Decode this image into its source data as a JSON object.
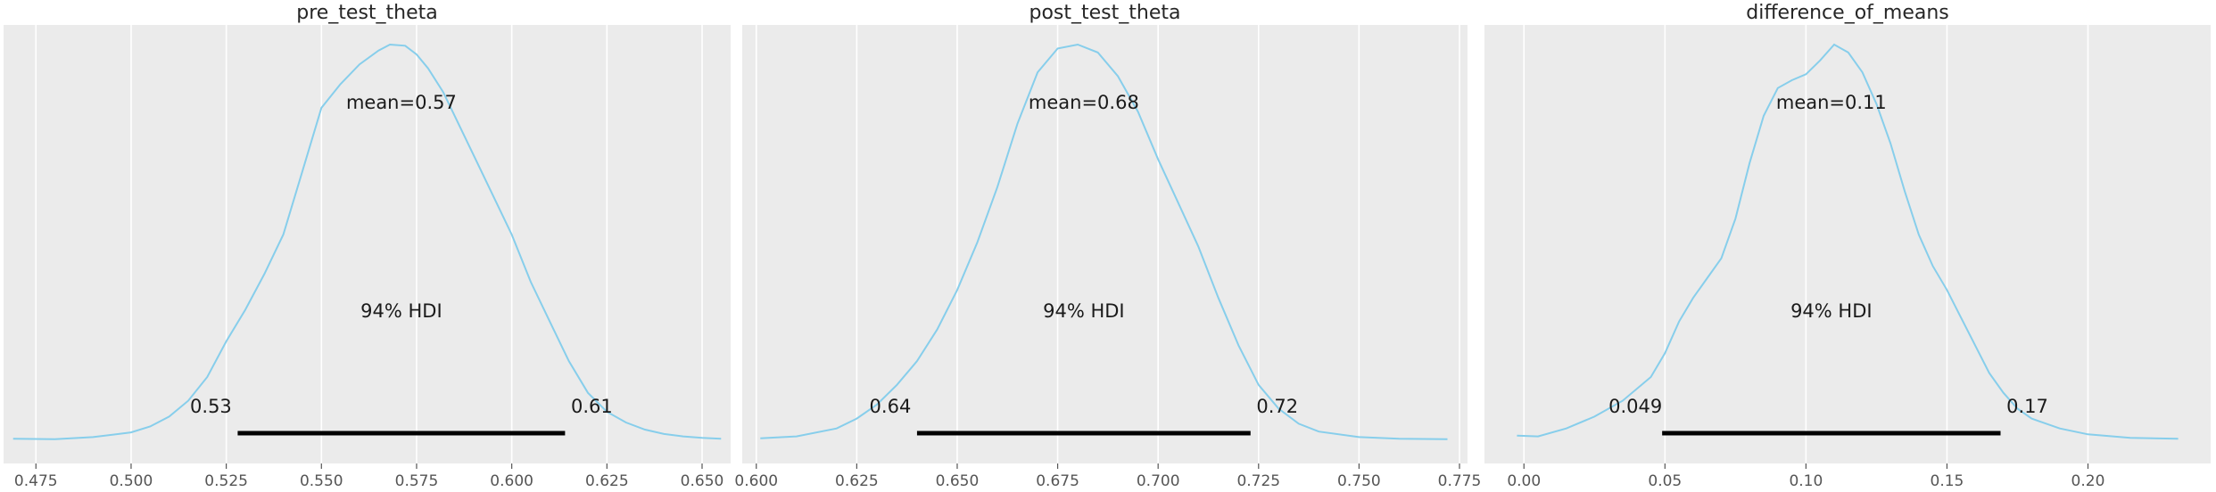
{
  "colors": {
    "kde": "#87ceeb",
    "hdi": "#000000",
    "panel_background": "#ebebeb"
  },
  "chart_data": [
    {
      "type": "area",
      "title": "pre_test_theta",
      "mean_label": "mean=0.57",
      "hdi_label": "94% HDI",
      "hdi": {
        "lower": 0.528,
        "upper": 0.614,
        "lower_label": "0.53",
        "upper_label": "0.61"
      },
      "xlim": [
        0.4665,
        0.6575
      ],
      "ylim": [
        0,
        1
      ],
      "xticks": [
        0.475,
        0.5,
        0.525,
        0.55,
        0.575,
        0.6,
        0.625,
        0.65
      ],
      "xtick_labels": [
        "0.475",
        "0.500",
        "0.525",
        "0.550",
        "0.575",
        "0.600",
        "0.625",
        "0.650"
      ],
      "density": {
        "x": [
          0.469,
          0.48,
          0.49,
          0.5,
          0.505,
          0.51,
          0.515,
          0.52,
          0.525,
          0.53,
          0.535,
          0.54,
          0.545,
          0.55,
          0.555,
          0.56,
          0.565,
          0.568,
          0.572,
          0.575,
          0.578,
          0.582,
          0.586,
          0.59,
          0.595,
          0.6,
          0.605,
          0.61,
          0.615,
          0.62,
          0.625,
          0.63,
          0.635,
          0.64,
          0.645,
          0.65,
          0.655
        ],
        "y": [
          0.004,
          0.003,
          0.008,
          0.02,
          0.035,
          0.06,
          0.1,
          0.16,
          0.25,
          0.33,
          0.42,
          0.52,
          0.68,
          0.84,
          0.9,
          0.95,
          0.985,
          1.0,
          0.997,
          0.975,
          0.94,
          0.88,
          0.8,
          0.72,
          0.62,
          0.52,
          0.4,
          0.3,
          0.2,
          0.12,
          0.072,
          0.045,
          0.027,
          0.016,
          0.01,
          0.006,
          0.004
        ]
      }
    },
    {
      "type": "area",
      "title": "post_test_theta",
      "mean_label": "mean=0.68",
      "hdi_label": "94% HDI",
      "hdi": {
        "lower": 0.64,
        "upper": 0.723,
        "lower_label": "0.64",
        "upper_label": "0.72"
      },
      "xlim": [
        0.5965,
        0.777
      ],
      "ylim": [
        0,
        1
      ],
      "xticks": [
        0.6,
        0.625,
        0.65,
        0.675,
        0.7,
        0.725,
        0.75,
        0.775
      ],
      "xtick_labels": [
        "0.600",
        "0.625",
        "0.650",
        "0.675",
        "0.700",
        "0.725",
        "0.750",
        "0.775"
      ],
      "density": {
        "x": [
          0.601,
          0.61,
          0.62,
          0.625,
          0.63,
          0.635,
          0.64,
          0.645,
          0.65,
          0.655,
          0.66,
          0.665,
          0.67,
          0.675,
          0.68,
          0.685,
          0.69,
          0.695,
          0.7,
          0.705,
          0.71,
          0.715,
          0.72,
          0.725,
          0.73,
          0.735,
          0.74,
          0.75,
          0.76,
          0.772
        ],
        "y": [
          0.005,
          0.01,
          0.03,
          0.055,
          0.09,
          0.14,
          0.2,
          0.28,
          0.38,
          0.5,
          0.64,
          0.8,
          0.93,
          0.99,
          1.0,
          0.98,
          0.92,
          0.83,
          0.71,
          0.6,
          0.49,
          0.36,
          0.24,
          0.14,
          0.08,
          0.042,
          0.022,
          0.008,
          0.004,
          0.003
        ]
      }
    },
    {
      "type": "area",
      "title": "difference_of_means",
      "mean_label": "mean=0.11",
      "hdi_label": "94% HDI",
      "hdi": {
        "lower": 0.049,
        "upper": 0.169,
        "lower_label": "0.049",
        "upper_label": "0.17"
      },
      "xlim": [
        -0.014,
        0.2435
      ],
      "ylim": [
        0,
        1
      ],
      "xticks": [
        0.0,
        0.05,
        0.1,
        0.15,
        0.2
      ],
      "xtick_labels": [
        "0.00",
        "0.05",
        "0.10",
        "0.15",
        "0.20"
      ],
      "density": {
        "x": [
          -0.0025,
          0.005,
          0.015,
          0.025,
          0.035,
          0.045,
          0.05,
          0.055,
          0.06,
          0.065,
          0.07,
          0.075,
          0.08,
          0.085,
          0.09,
          0.095,
          0.1,
          0.105,
          0.11,
          0.115,
          0.12,
          0.125,
          0.13,
          0.135,
          0.14,
          0.145,
          0.15,
          0.155,
          0.16,
          0.165,
          0.17,
          0.175,
          0.18,
          0.19,
          0.2,
          0.215,
          0.232
        ],
        "y": [
          0.012,
          0.01,
          0.03,
          0.06,
          0.1,
          0.16,
          0.22,
          0.3,
          0.36,
          0.41,
          0.46,
          0.56,
          0.7,
          0.82,
          0.89,
          0.91,
          0.925,
          0.96,
          1.0,
          0.98,
          0.93,
          0.85,
          0.75,
          0.63,
          0.52,
          0.44,
          0.38,
          0.31,
          0.24,
          0.17,
          0.12,
          0.08,
          0.055,
          0.03,
          0.015,
          0.006,
          0.004
        ]
      }
    }
  ]
}
